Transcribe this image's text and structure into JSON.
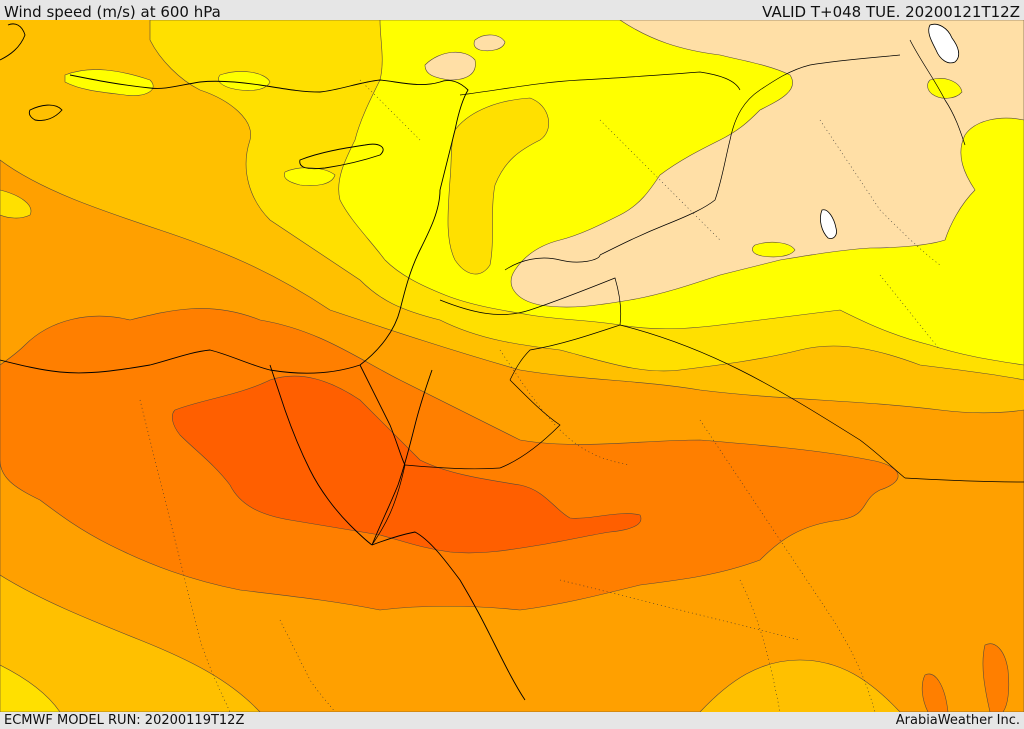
{
  "header": {
    "title": "Wind speed (m/s) at 600 hPa",
    "valid": "VALID T+048 TUE. 20200121T12Z"
  },
  "footer": {
    "model_run": "ECMWF MODEL RUN: 20200119T12Z",
    "credit": "ArabiaWeather Inc."
  },
  "map": {
    "variable": "wind speed",
    "units": "m/s",
    "level": "600 hPa",
    "palette": {
      "lowest": "#ffdfa6",
      "low": "#ffff00",
      "mid_low": "#ffe000",
      "mid": "#ffc000",
      "mid_high": "#ffa000",
      "high": "#ff7f00",
      "highest": "#ff5f00",
      "water_lakes": "#ffffff"
    }
  }
}
